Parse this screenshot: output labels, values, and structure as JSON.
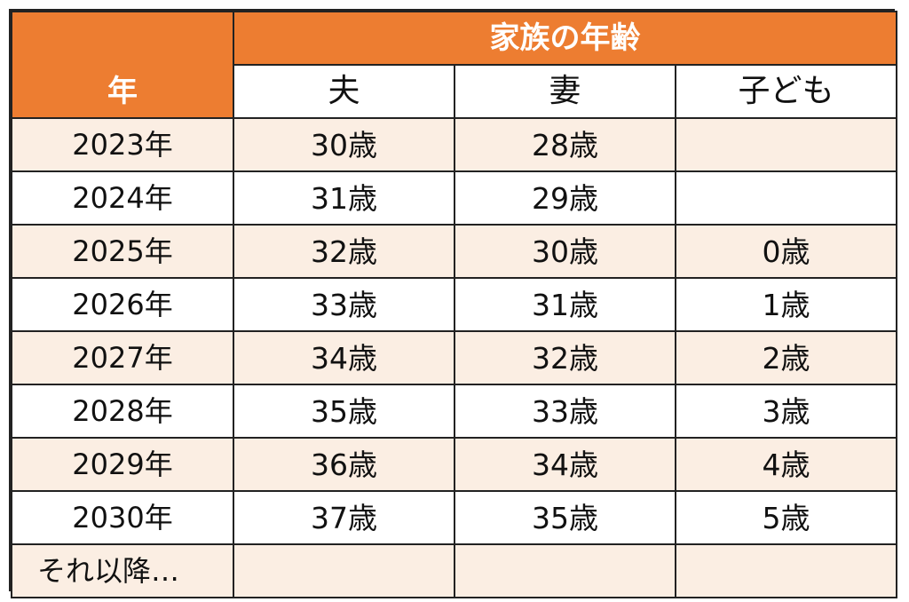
{
  "table": {
    "year_header": "年",
    "group_header": "家族の年齢",
    "member_headers": [
      "夫",
      "妻",
      "子ども"
    ],
    "rows": [
      {
        "year": "2023年",
        "husband": "30歳",
        "wife": "28歳",
        "child": ""
      },
      {
        "year": "2024年",
        "husband": "31歳",
        "wife": "29歳",
        "child": ""
      },
      {
        "year": "2025年",
        "husband": "32歳",
        "wife": "30歳",
        "child": "0歳"
      },
      {
        "year": "2026年",
        "husband": "33歳",
        "wife": "31歳",
        "child": "1歳"
      },
      {
        "year": "2027年",
        "husband": "34歳",
        "wife": "32歳",
        "child": "2歳"
      },
      {
        "year": "2028年",
        "husband": "35歳",
        "wife": "33歳",
        "child": "3歳"
      },
      {
        "year": "2029年",
        "husband": "36歳",
        "wife": "34歳",
        "child": "4歳"
      },
      {
        "year": "2030年",
        "husband": "37歳",
        "wife": "35歳",
        "child": "5歳"
      },
      {
        "year": "それ以降…",
        "husband": "",
        "wife": "",
        "child": ""
      }
    ]
  },
  "colors": {
    "header_orange": "#ed7d31",
    "row_shade": "#fbeee3",
    "border": "#222222"
  }
}
